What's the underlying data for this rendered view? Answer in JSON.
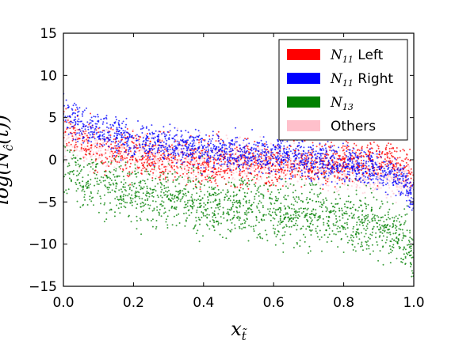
{
  "chart_data": {
    "type": "scatter",
    "xlabel": "x",
    "xlabel_sub": "t̃",
    "ylabel": "log(N",
    "ylabel_sub": "ĉ",
    "ylabel_tail": "(t))",
    "xlim": [
      0.0,
      1.0
    ],
    "ylim": [
      -15,
      15
    ],
    "x_ticks": [
      0.0,
      0.2,
      0.4,
      0.6,
      0.8,
      1.0
    ],
    "x_tick_labels": [
      "0.0",
      "0.2",
      "0.4",
      "0.6",
      "0.8",
      "1.0"
    ],
    "y_ticks": [
      -15,
      -10,
      -5,
      0,
      5,
      10,
      15
    ],
    "y_tick_labels": [
      "−15",
      "−10",
      "−5",
      "0",
      "5",
      "10",
      "15"
    ],
    "grid": false,
    "legend_position": "top-right",
    "series": [
      {
        "name_base": "N",
        "name_sub": "11",
        "name_tail": " Left",
        "color": "#ff0000",
        "trend": [
          [
            0.0,
            4.5
          ],
          [
            0.05,
            2.0
          ],
          [
            0.2,
            0.5
          ],
          [
            0.4,
            -0.3
          ],
          [
            0.6,
            -0.5
          ],
          [
            0.8,
            -0.3
          ],
          [
            0.9,
            0.0
          ],
          [
            0.95,
            -0.2
          ],
          [
            0.98,
            -1.0
          ],
          [
            1.0,
            -2.5
          ]
        ],
        "spread": 1.6
      },
      {
        "name_base": "N",
        "name_sub": "11",
        "name_tail": " Right",
        "color": "#0000ff",
        "trend": [
          [
            0.0,
            6.0
          ],
          [
            0.05,
            4.0
          ],
          [
            0.2,
            2.3
          ],
          [
            0.4,
            1.3
          ],
          [
            0.6,
            0.5
          ],
          [
            0.8,
            -0.5
          ],
          [
            0.9,
            -1.2
          ],
          [
            0.95,
            -2.0
          ],
          [
            0.98,
            -3.0
          ],
          [
            1.0,
            -5.0
          ]
        ],
        "spread": 1.3
      },
      {
        "name_base": "N",
        "name_sub": "13",
        "name_tail": "",
        "color": "#008000",
        "trend": [
          [
            0.0,
            0.0
          ],
          [
            0.05,
            -2.5
          ],
          [
            0.2,
            -4.0
          ],
          [
            0.4,
            -5.0
          ],
          [
            0.6,
            -6.0
          ],
          [
            0.8,
            -7.0
          ],
          [
            0.9,
            -7.8
          ],
          [
            0.95,
            -8.5
          ],
          [
            0.98,
            -9.5
          ],
          [
            1.0,
            -12.0
          ]
        ],
        "spread": 2.0
      },
      {
        "name_base": "",
        "name_sub": "",
        "name_tail": "Others",
        "color": "#ffc0cb",
        "trend": [
          [
            0.0,
            2.5
          ],
          [
            0.05,
            1.5
          ],
          [
            0.2,
            0.5
          ],
          [
            0.4,
            0.0
          ],
          [
            0.6,
            -0.3
          ],
          [
            0.8,
            -1.0
          ],
          [
            0.9,
            -1.5
          ],
          [
            0.95,
            -2.0
          ],
          [
            0.98,
            -2.5
          ],
          [
            1.0,
            -4.0
          ]
        ],
        "spread": 1.5
      }
    ]
  }
}
